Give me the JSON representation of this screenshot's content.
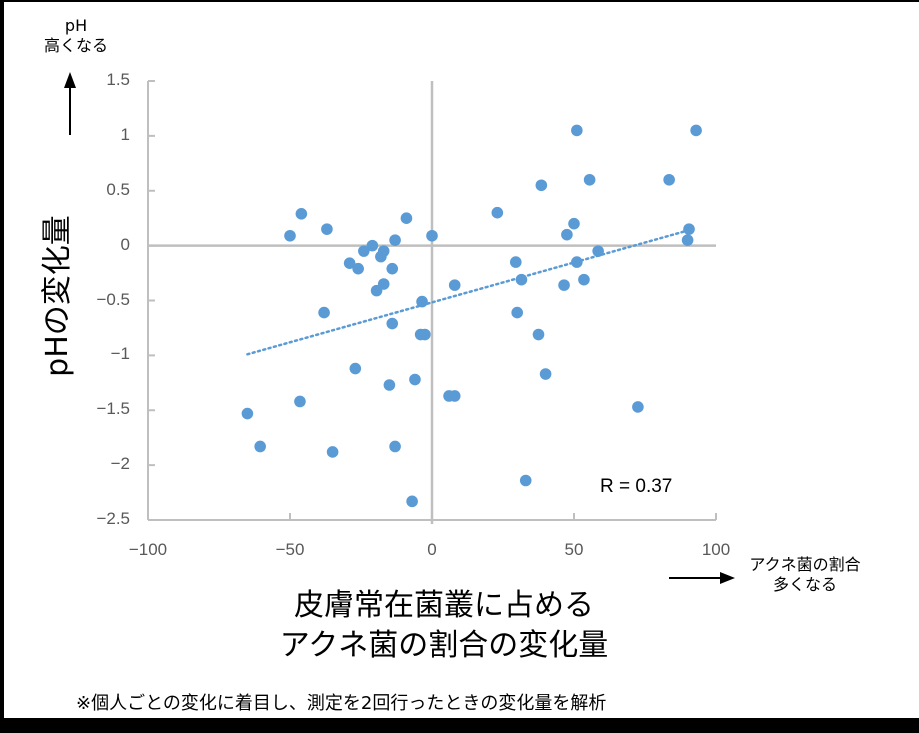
{
  "chart_data": {
    "type": "scatter",
    "title": "",
    "xlabel": "皮膚常在菌叢に占める アクネ菌の割合の変化量",
    "ylabel": "pHの変化量",
    "xlim": [
      -100,
      100
    ],
    "ylim": [
      -2.5,
      1.5
    ],
    "x_ticks": [
      -100,
      -50,
      0,
      50,
      100
    ],
    "y_ticks": [
      1.5,
      1,
      0.5,
      0,
      -0.5,
      -1,
      -1.5,
      -2,
      -2.5
    ],
    "grid": false,
    "legend": "none",
    "marker_color": "#5B9BD5",
    "axis_color": "#BFBFBF",
    "series": [
      {
        "name": "individuals",
        "points": [
          [
            -50,
            0.09
          ],
          [
            -46,
            0.29
          ],
          [
            -37,
            0.15
          ],
          [
            -9,
            0.25
          ],
          [
            0,
            0.09
          ],
          [
            -13,
            0.05
          ],
          [
            -21,
            0.0
          ],
          [
            -24,
            -0.05
          ],
          [
            -17,
            -0.05
          ],
          [
            -18,
            -0.1
          ],
          [
            -29,
            -0.16
          ],
          [
            -26,
            -0.21
          ],
          [
            -14,
            -0.21
          ],
          [
            -17,
            -0.35
          ],
          [
            -19.5,
            -0.41
          ],
          [
            -38,
            -0.61
          ],
          [
            -3.5,
            -0.51
          ],
          [
            -14,
            -0.71
          ],
          [
            -4,
            -0.81
          ],
          [
            -2.5,
            -0.81
          ],
          [
            -27,
            -1.12
          ],
          [
            -15,
            -1.27
          ],
          [
            -6,
            -1.22
          ],
          [
            -46.5,
            -1.42
          ],
          [
            -65,
            -1.53
          ],
          [
            -60.5,
            -1.83
          ],
          [
            -35,
            -1.88
          ],
          [
            -13,
            -1.83
          ],
          [
            -7,
            -2.33
          ],
          [
            51,
            1.05
          ],
          [
            93,
            1.05
          ],
          [
            38.5,
            0.55
          ],
          [
            55.5,
            0.6
          ],
          [
            83.5,
            0.6
          ],
          [
            23,
            0.3
          ],
          [
            50,
            0.2
          ],
          [
            47.5,
            0.1
          ],
          [
            90.5,
            0.15
          ],
          [
            90,
            0.05
          ],
          [
            58.5,
            -0.05
          ],
          [
            29.5,
            -0.15
          ],
          [
            51,
            -0.15
          ],
          [
            8,
            -0.36
          ],
          [
            31.5,
            -0.31
          ],
          [
            46.5,
            -0.36
          ],
          [
            53.5,
            -0.31
          ],
          [
            30,
            -0.61
          ],
          [
            37.5,
            -0.81
          ],
          [
            40,
            -1.17
          ],
          [
            6,
            -1.37
          ],
          [
            8,
            -1.37
          ],
          [
            72.5,
            -1.47
          ],
          [
            33,
            -2.14
          ]
        ]
      }
    ],
    "trendline": {
      "style": "dotted",
      "x": [
        -65,
        89
      ],
      "y": [
        -0.99,
        0.13
      ]
    },
    "annotations": [
      "R = 0.37"
    ]
  },
  "labels": {
    "y_direction_line1": "pH",
    "y_direction_line2": "高くなる",
    "x_direction_line1": "アクネ菌の割合",
    "x_direction_line2": "多くなる",
    "ylabel": "pHの変化量",
    "xlabel_line1": "皮膚常在菌叢に占める",
    "xlabel_line2": "アクネ菌の割合の変化量",
    "r_value": "R = 0.37",
    "footnote": "※個人ごとの変化に着目し、測定を2回行ったときの変化量を解析"
  },
  "ticks": {
    "y": [
      "1.5",
      "1",
      "0.5",
      "0",
      "−0.5",
      "−1",
      "−1.5",
      "−2",
      "−2.5"
    ],
    "x": [
      "−100",
      "−50",
      "0",
      "50",
      "100"
    ]
  }
}
